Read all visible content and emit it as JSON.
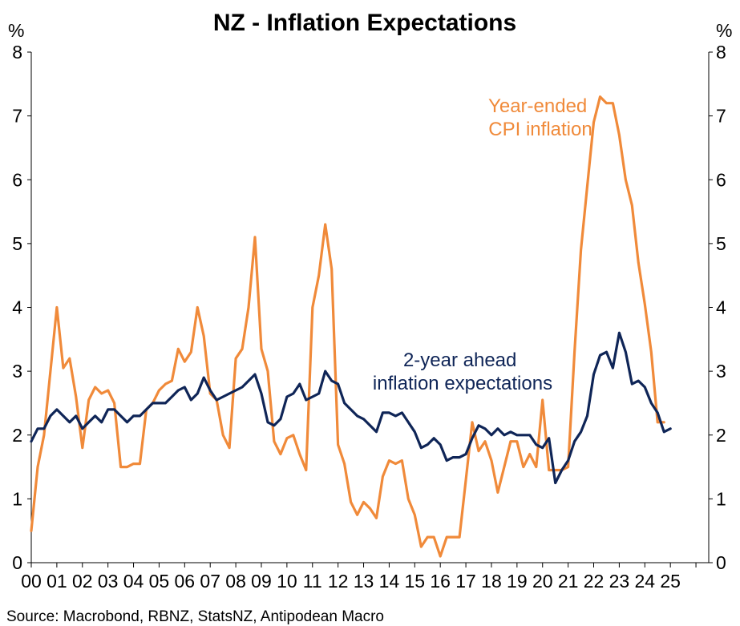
{
  "chart_data": {
    "type": "line",
    "title": "NZ - Inflation Expectations",
    "ylabel_left": "%",
    "ylabel_right": "%",
    "ylim": [
      0,
      8
    ],
    "yticks": [
      0,
      1,
      2,
      3,
      4,
      5,
      6,
      7,
      8
    ],
    "xlim": [
      2000,
      2026.5
    ],
    "x_tick_labels": [
      "00",
      "01",
      "02",
      "03",
      "04",
      "05",
      "06",
      "07",
      "08",
      "09",
      "10",
      "11",
      "12",
      "13",
      "14",
      "15",
      "16",
      "17",
      "18",
      "19",
      "20",
      "21",
      "22",
      "23",
      "24",
      "25"
    ],
    "source": "Source: Macrobond, RBNZ, StatsNZ, Antipodean Macro",
    "colors": {
      "cpi": "#F08A3A",
      "expectations": "#0F2557",
      "axis": "#000000"
    },
    "series": [
      {
        "name": "Year-ended CPI inflation",
        "label_lines": [
          "Year-ended",
          "CPI inflation"
        ],
        "color": "#F08A3A",
        "x": [
          2000.0,
          2000.25,
          2000.5,
          2000.75,
          2001.0,
          2001.25,
          2001.5,
          2001.75,
          2002.0,
          2002.25,
          2002.5,
          2002.75,
          2003.0,
          2003.25,
          2003.5,
          2003.75,
          2004.0,
          2004.25,
          2004.5,
          2004.75,
          2005.0,
          2005.25,
          2005.5,
          2005.75,
          2006.0,
          2006.25,
          2006.5,
          2006.75,
          2007.0,
          2007.25,
          2007.5,
          2007.75,
          2008.0,
          2008.25,
          2008.5,
          2008.75,
          2009.0,
          2009.25,
          2009.5,
          2009.75,
          2010.0,
          2010.25,
          2010.5,
          2010.75,
          2011.0,
          2011.25,
          2011.5,
          2011.75,
          2012.0,
          2012.25,
          2012.5,
          2012.75,
          2013.0,
          2013.25,
          2013.5,
          2013.75,
          2014.0,
          2014.25,
          2014.5,
          2014.75,
          2015.0,
          2015.25,
          2015.5,
          2015.75,
          2016.0,
          2016.25,
          2016.5,
          2016.75,
          2017.0,
          2017.25,
          2017.5,
          2017.75,
          2018.0,
          2018.25,
          2018.5,
          2018.75,
          2019.0,
          2019.25,
          2019.5,
          2019.75,
          2020.0,
          2020.25,
          2020.5,
          2020.75,
          2021.0,
          2021.25,
          2021.5,
          2021.75,
          2022.0,
          2022.25,
          2022.5,
          2022.75,
          2023.0,
          2023.25,
          2023.5,
          2023.75,
          2024.0,
          2024.25,
          2024.5,
          2024.75
        ],
        "values": [
          0.5,
          1.5,
          2.0,
          3.0,
          4.0,
          3.05,
          3.2,
          2.6,
          1.8,
          2.55,
          2.75,
          2.65,
          2.7,
          2.5,
          1.5,
          1.5,
          1.55,
          1.55,
          2.4,
          2.5,
          2.7,
          2.8,
          2.85,
          3.35,
          3.15,
          3.3,
          4.0,
          3.55,
          2.65,
          2.55,
          2.0,
          1.8,
          3.2,
          3.35,
          4.0,
          5.1,
          3.35,
          3.0,
          1.9,
          1.7,
          1.95,
          2.0,
          1.7,
          1.45,
          4.0,
          4.5,
          5.3,
          4.6,
          1.85,
          1.55,
          0.95,
          0.75,
          0.95,
          0.85,
          0.7,
          1.35,
          1.6,
          1.55,
          1.6,
          1.0,
          0.75,
          0.25,
          0.4,
          0.4,
          0.1,
          0.4,
          0.4,
          0.4,
          1.3,
          2.2,
          1.75,
          1.9,
          1.6,
          1.1,
          1.5,
          1.9,
          1.9,
          1.5,
          1.7,
          1.5,
          2.55,
          1.45,
          1.45,
          1.45,
          1.5,
          3.3,
          4.9,
          5.9,
          6.9,
          7.3,
          7.2,
          7.2,
          6.7,
          6.0,
          5.6,
          4.7,
          4.05,
          3.3,
          2.2,
          2.2
        ]
      },
      {
        "name": "2-year ahead inflation expectations",
        "label_lines": [
          "2-year ahead",
          "inflation expectations"
        ],
        "color": "#0F2557",
        "x": [
          2000.0,
          2000.25,
          2000.5,
          2000.75,
          2001.0,
          2001.25,
          2001.5,
          2001.75,
          2002.0,
          2002.25,
          2002.5,
          2002.75,
          2003.0,
          2003.25,
          2003.5,
          2003.75,
          2004.0,
          2004.25,
          2004.5,
          2004.75,
          2005.0,
          2005.25,
          2005.5,
          2005.75,
          2006.0,
          2006.25,
          2006.5,
          2006.75,
          2007.0,
          2007.25,
          2007.5,
          2007.75,
          2008.0,
          2008.25,
          2008.5,
          2008.75,
          2009.0,
          2009.25,
          2009.5,
          2009.75,
          2010.0,
          2010.25,
          2010.5,
          2010.75,
          2011.0,
          2011.25,
          2011.5,
          2011.75,
          2012.0,
          2012.25,
          2012.5,
          2012.75,
          2013.0,
          2013.25,
          2013.5,
          2013.75,
          2014.0,
          2014.25,
          2014.5,
          2014.75,
          2015.0,
          2015.25,
          2015.5,
          2015.75,
          2016.0,
          2016.25,
          2016.5,
          2016.75,
          2017.0,
          2017.25,
          2017.5,
          2017.75,
          2018.0,
          2018.25,
          2018.5,
          2018.75,
          2019.0,
          2019.25,
          2019.5,
          2019.75,
          2020.0,
          2020.25,
          2020.5,
          2020.75,
          2021.0,
          2021.25,
          2021.5,
          2021.75,
          2022.0,
          2022.25,
          2022.5,
          2022.75,
          2023.0,
          2023.25,
          2023.5,
          2023.75,
          2024.0,
          2024.25,
          2024.5,
          2024.75,
          2025.0
        ],
        "values": [
          1.9,
          2.1,
          2.1,
          2.3,
          2.4,
          2.3,
          2.2,
          2.3,
          2.1,
          2.2,
          2.3,
          2.2,
          2.4,
          2.4,
          2.3,
          2.2,
          2.3,
          2.3,
          2.4,
          2.5,
          2.5,
          2.5,
          2.6,
          2.7,
          2.75,
          2.55,
          2.65,
          2.9,
          2.7,
          2.55,
          2.6,
          2.65,
          2.7,
          2.75,
          2.85,
          2.95,
          2.65,
          2.2,
          2.15,
          2.25,
          2.6,
          2.65,
          2.8,
          2.55,
          2.6,
          2.65,
          3.0,
          2.85,
          2.8,
          2.5,
          2.4,
          2.3,
          2.25,
          2.15,
          2.05,
          2.35,
          2.35,
          2.3,
          2.35,
          2.2,
          2.05,
          1.8,
          1.85,
          1.95,
          1.85,
          1.6,
          1.65,
          1.65,
          1.7,
          1.95,
          2.15,
          2.1,
          2.0,
          2.1,
          2.0,
          2.05,
          2.0,
          2.0,
          2.0,
          1.85,
          1.8,
          1.95,
          1.25,
          1.45,
          1.6,
          1.9,
          2.05,
          2.3,
          2.95,
          3.25,
          3.3,
          3.05,
          3.6,
          3.3,
          2.8,
          2.85,
          2.75,
          2.5,
          2.35,
          2.05,
          2.1
        ]
      }
    ]
  }
}
